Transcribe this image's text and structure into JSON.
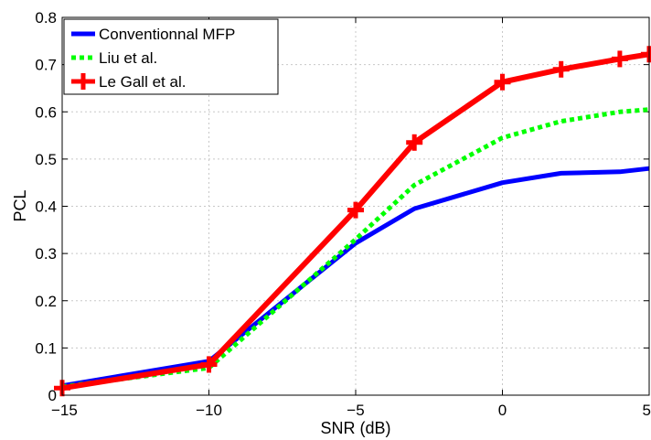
{
  "chart_data": {
    "type": "line",
    "xlabel": "SNR (dB)",
    "ylabel": "PCL",
    "xlim": [
      -15,
      5
    ],
    "ylim": [
      0,
      0.8
    ],
    "x_ticks": [
      -15,
      -10,
      -5,
      0,
      5
    ],
    "y_ticks": [
      0,
      0.1,
      0.2,
      0.3,
      0.4,
      0.5,
      0.6,
      0.7,
      0.8
    ],
    "x_tick_labels": [
      "−15",
      "−10",
      "−5",
      "0",
      "5"
    ],
    "y_tick_labels": [
      "0",
      "0.1",
      "0.2",
      "0.3",
      "0.4",
      "0.5",
      "0.6",
      "0.7",
      "0.8"
    ],
    "grid": true,
    "legend_position": "top-left",
    "x": [
      -15,
      -10,
      -5,
      -3,
      0,
      2,
      4,
      5
    ],
    "series": [
      {
        "name": "Conventionnal MFP",
        "color": "#0000ff",
        "style": "solid",
        "marker": "none",
        "values": [
          0.02,
          0.072,
          0.322,
          0.395,
          0.45,
          0.47,
          0.473,
          0.48
        ]
      },
      {
        "name": "Liu et al.",
        "color": "#00ff00",
        "style": "dotted",
        "marker": "none",
        "values": [
          0.018,
          0.058,
          0.33,
          0.445,
          0.545,
          0.58,
          0.6,
          0.605
        ]
      },
      {
        "name": "Le Gall et al.",
        "color": "#ff0000",
        "style": "solid",
        "marker": "plus",
        "values": [
          0.015,
          0.065,
          0.392,
          0.535,
          0.663,
          0.69,
          0.712,
          0.722
        ]
      }
    ]
  }
}
